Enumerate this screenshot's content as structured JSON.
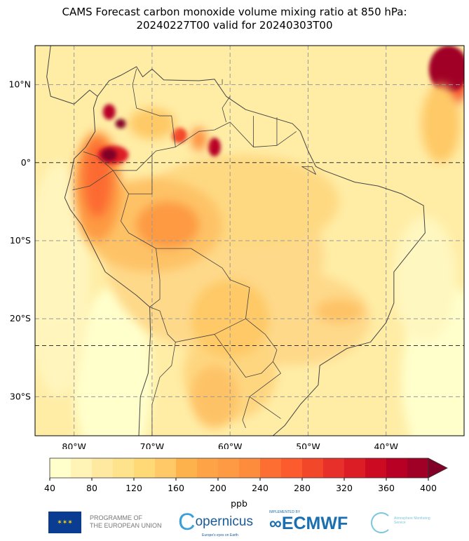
{
  "title_line1": "CAMS Forecast carbon monoxide volume mixing ratio at 850 hPa:",
  "title_line2": "20240227T00 valid for 20240303T00",
  "map": {
    "lon_range": [
      -85,
      -30
    ],
    "lat_range": [
      -35,
      15
    ],
    "lat_labels": [
      {
        "lat": 10,
        "label": "10°N"
      },
      {
        "lat": 0,
        "label": "0°"
      },
      {
        "lat": -10,
        "label": "10°S"
      },
      {
        "lat": -20,
        "label": "20°S"
      },
      {
        "lat": -30,
        "label": "30°S"
      }
    ],
    "lon_labels": [
      {
        "lon": -80,
        "label": "80°W"
      },
      {
        "lon": -70,
        "label": "70°W"
      },
      {
        "lon": -60,
        "label": "60°W"
      },
      {
        "lon": -50,
        "label": "50°W"
      },
      {
        "lon": -40,
        "label": "40°W"
      }
    ]
  },
  "colorbar": {
    "unit": "ppb",
    "levels": [
      40,
      60,
      80,
      100,
      120,
      140,
      160,
      180,
      200,
      220,
      240,
      260,
      280,
      300,
      320,
      340,
      360,
      380,
      400
    ],
    "tick_labels": [
      "40",
      "80",
      "120",
      "160",
      "200",
      "240",
      "280",
      "320",
      "360",
      "400"
    ],
    "colors": [
      "#ffffcc",
      "#fff3b5",
      "#ffe89f",
      "#fee38c",
      "#fed976",
      "#fec966",
      "#feb24c",
      "#fea446",
      "#fd9a43",
      "#fd8d3c",
      "#fd6e33",
      "#fc5b2e",
      "#f3472a",
      "#e8302a",
      "#dd1d25",
      "#cc0b23",
      "#b80025",
      "#a00026"
    ],
    "extend_color": "#800026"
  },
  "logos": {
    "eu": "PROGRAMME OF THE EUROPEAN UNION",
    "eu_line1": "PROGRAMME OF",
    "eu_line2": "THE EUROPEAN UNION",
    "copernicus": "opernicus",
    "copernicus_c": "C",
    "copernicus_tag": "Europe's eyes on Earth",
    "ecmwf_small": "IMPLEMENTED BY",
    "ecmwf": "ECMWF",
    "cams": "Atmosphere Monitoring Service"
  }
}
